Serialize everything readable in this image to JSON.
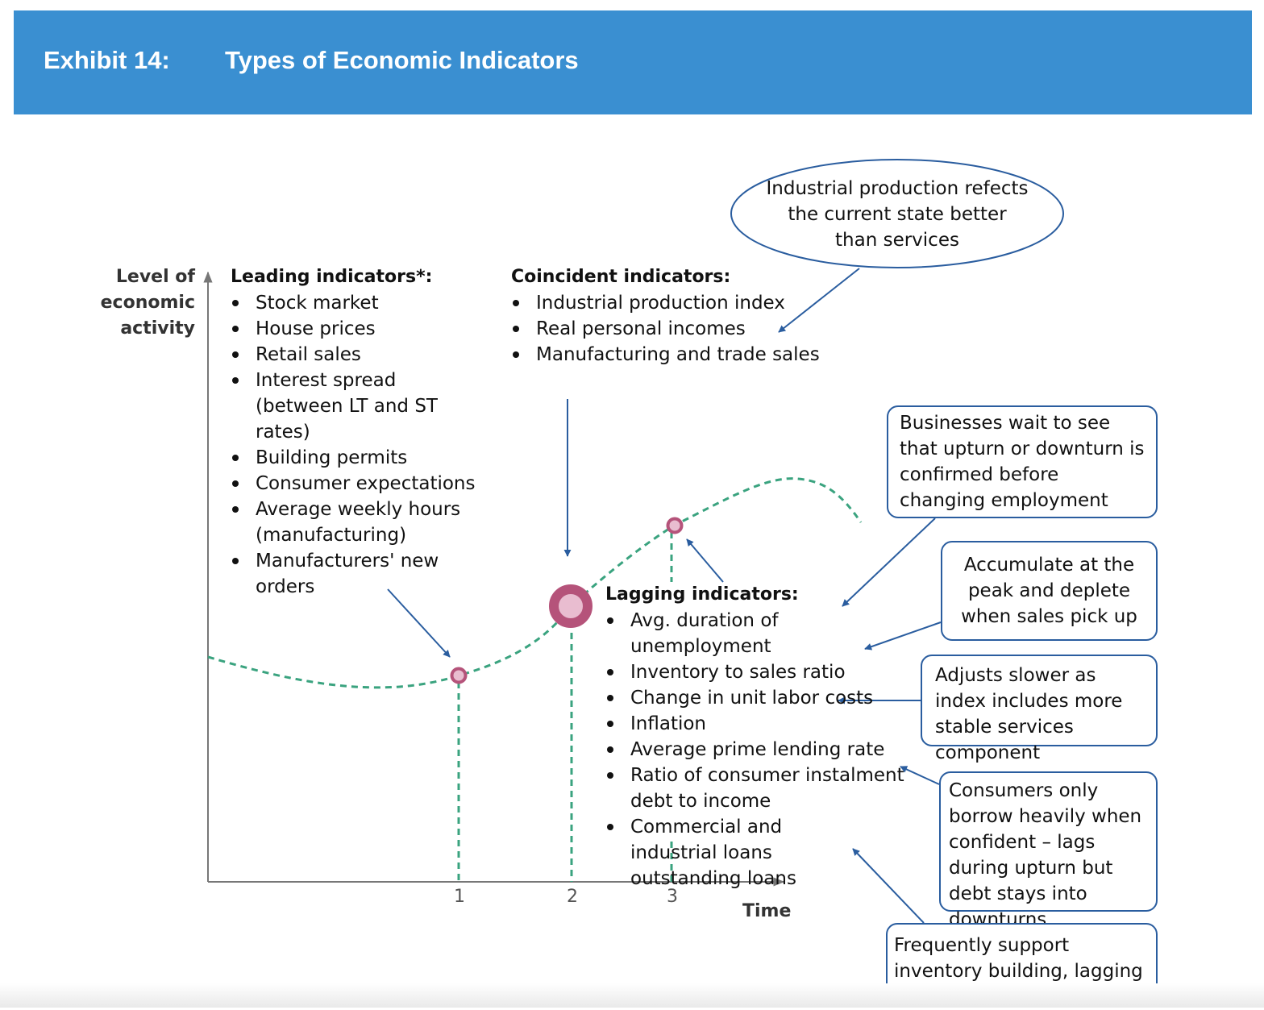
{
  "header": {
    "label": "Exhibit 14:",
    "title": "Types of Economic Indicators",
    "bg_color": "#3a8fd1"
  },
  "y_axis_label": [
    "Level of",
    "economic",
    "activity"
  ],
  "x_axis_label": "Time",
  "x_ticks": [
    "1",
    "2",
    "3"
  ],
  "leading": {
    "heading": "Leading indicators*:",
    "items": [
      "Stock market",
      "House prices",
      "Retail sales",
      "Interest spread (between LT and ST rates)",
      "Building permits",
      "Consumer expectations",
      "Average weekly hours (manufacturing)",
      "Manufacturers' new orders"
    ]
  },
  "coincident": {
    "heading": "Coincident indicators:",
    "items": [
      "Industrial production index",
      "Real personal incomes",
      "Manufacturing and trade sales"
    ]
  },
  "lagging": {
    "heading": "Lagging indicators:",
    "items": [
      "Avg. duration of unemployment",
      "Inventory to sales ratio",
      "Change in unit labor costs",
      "Inflation",
      "Average prime lending rate",
      "Ratio of consumer instalment debt to income",
      "Commercial and industrial loans outstanding loans"
    ]
  },
  "callouts": {
    "industrial": "Industrial production refects the current state better than services",
    "businesses": "Businesses wait to see that upturn or downturn is confirmed before changing employment",
    "accumulate": "Accumulate at the peak and deplete when sales pick up",
    "adjusts": "Adjusts slower as index includes more stable services component",
    "consumers": "Consumers only borrow heavily when confident – lags during upturn but debt stays into downturns",
    "frequently": "Frequently support inventory building, lagging the cycle"
  },
  "colors": {
    "curve": "#3aa37f",
    "marker": "#b5537a",
    "arrow": "#2a5d9f",
    "axis": "#666666"
  }
}
